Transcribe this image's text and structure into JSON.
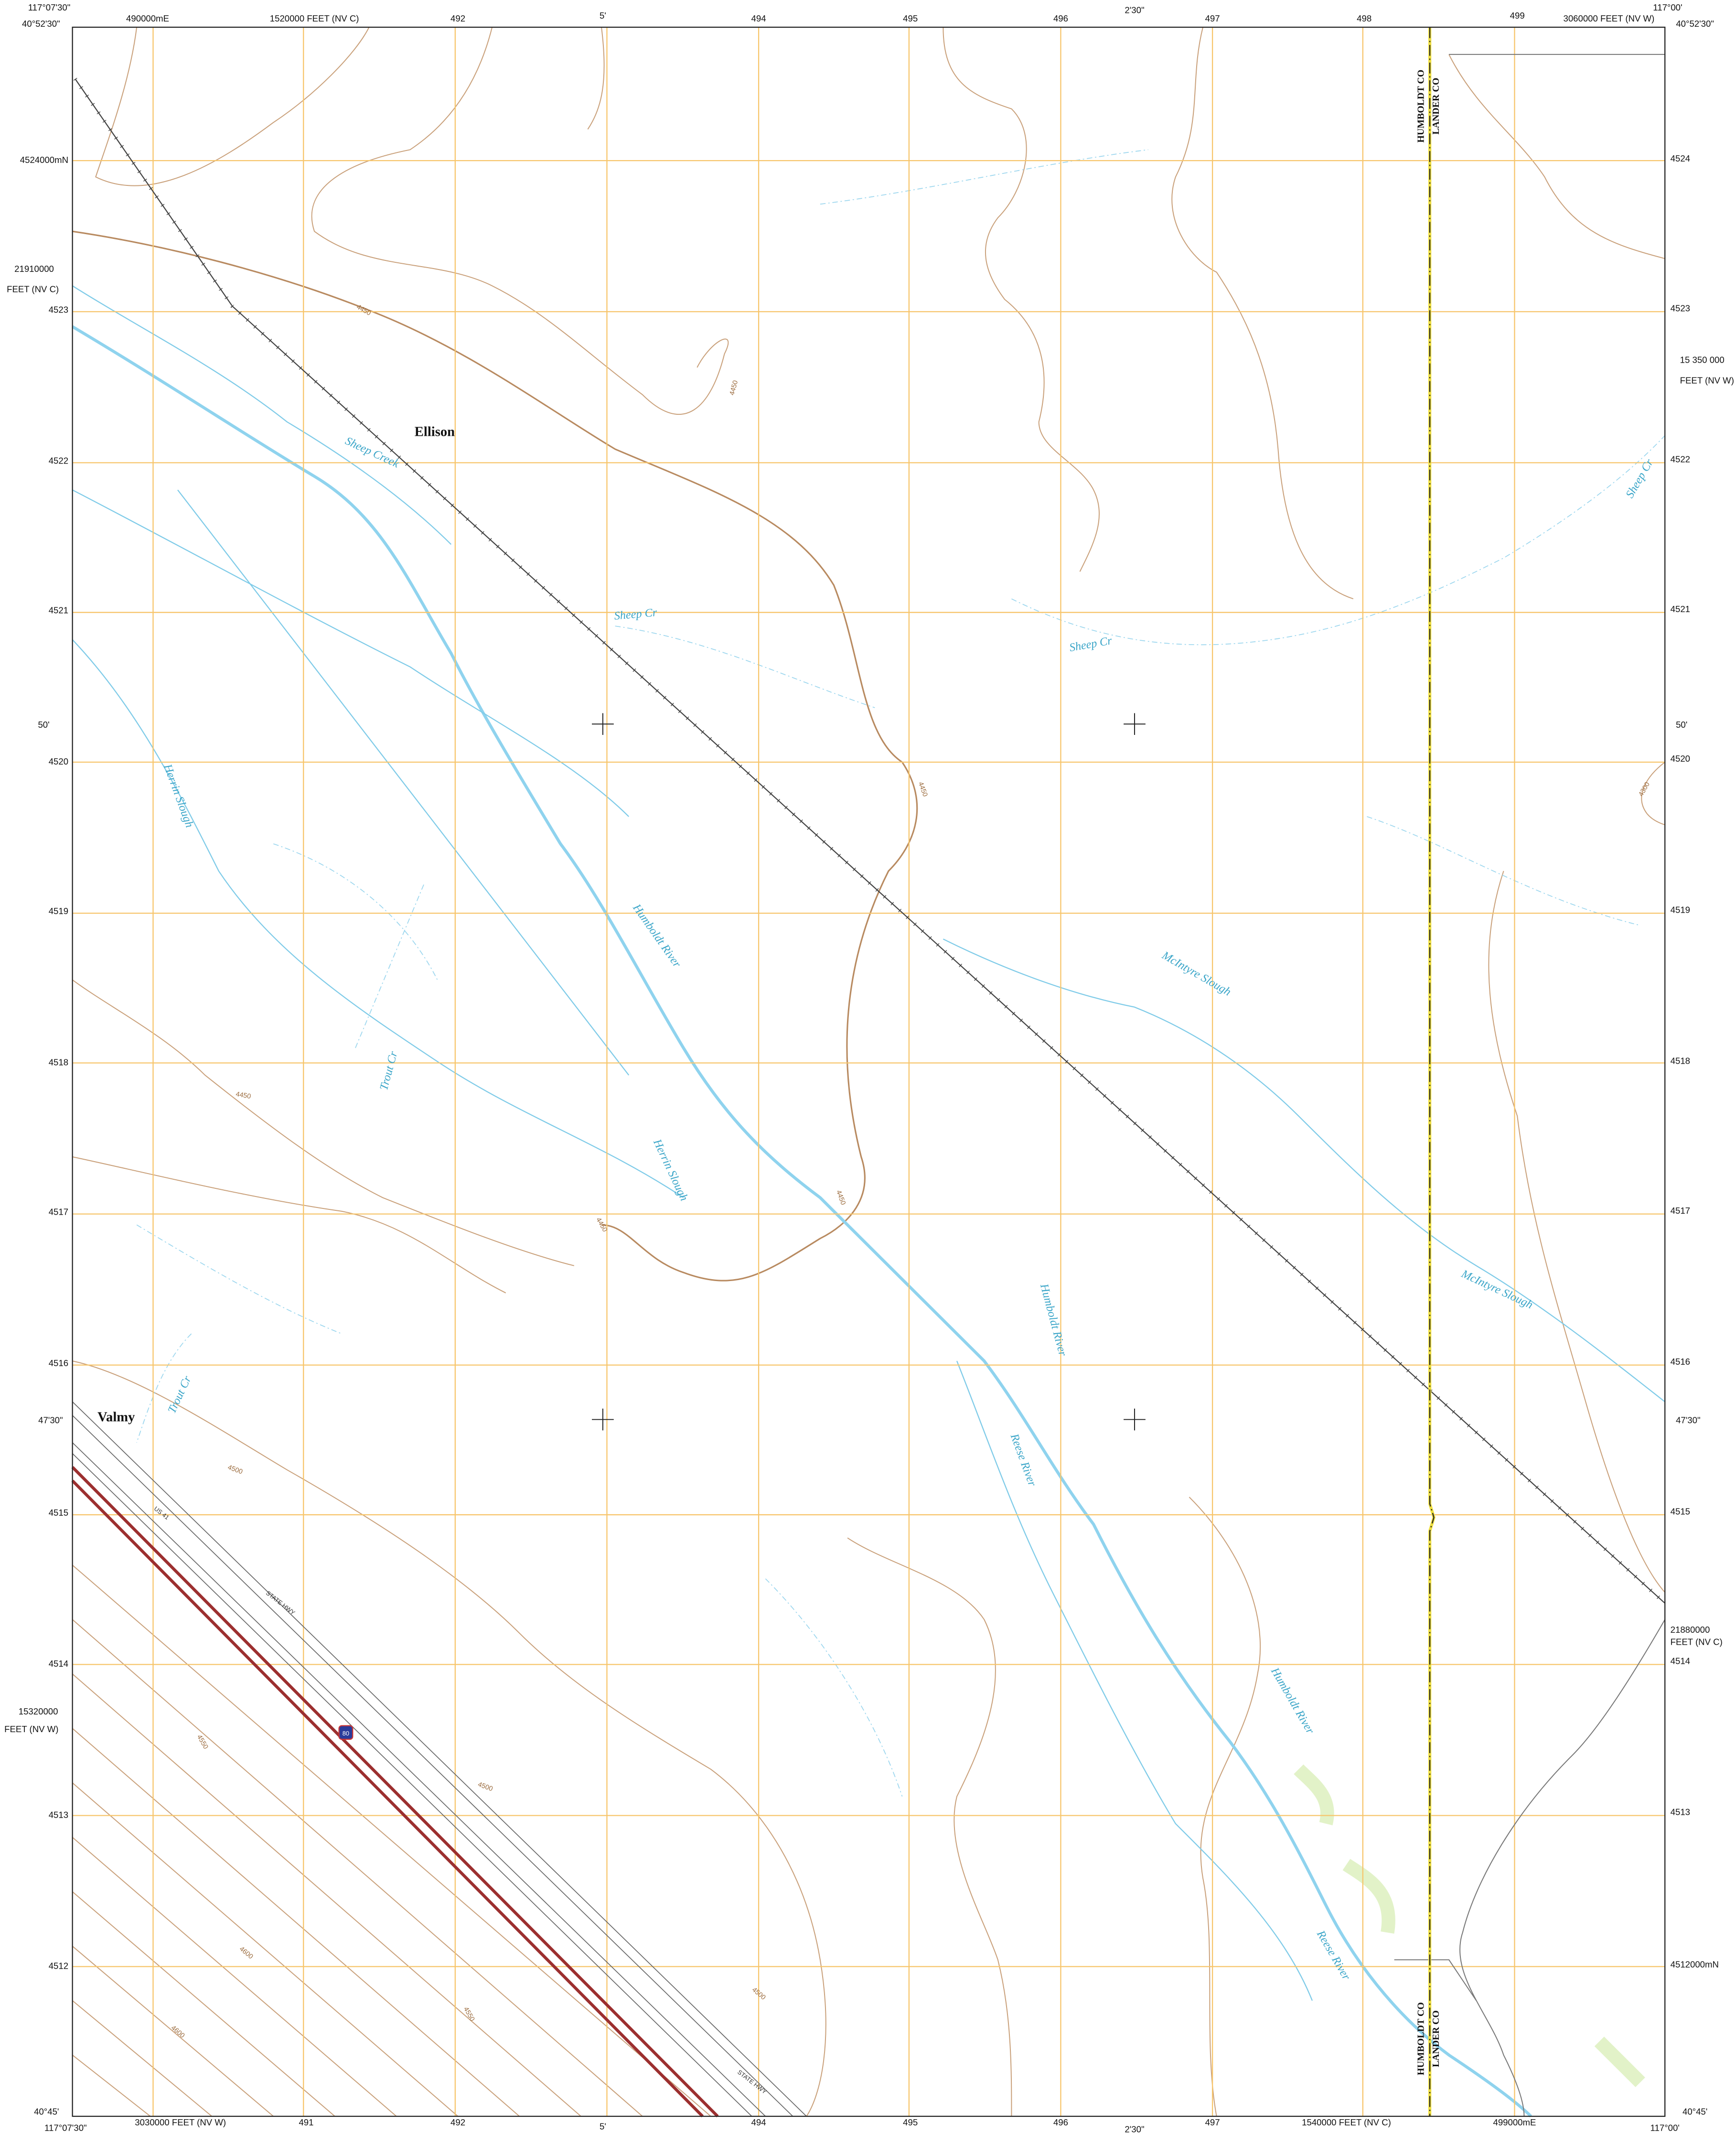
{
  "top_labels": [
    "117°07'30\"",
    "40°52'30\"",
    "490000mE",
    "1520000 FEET (NV C)",
    "492",
    "5'",
    "494",
    "495",
    "496",
    "2'30\"",
    "497",
    "498",
    "499",
    "3060000 FEET (NV W)",
    "117°00'",
    "40°52'30\""
  ],
  "bottom_labels": [
    "40°45'",
    "117°07'30\"",
    "3030000 FEET (NV W)",
    "491",
    "492",
    "5'",
    "494",
    "495",
    "496",
    "2'30\"",
    "497",
    "1540000 FEET (NV C)",
    "499000mE",
    "117°00'",
    "40°45'"
  ],
  "left_labels": [
    "4524000mN",
    "21910000",
    "FEET (NV C)",
    "4523",
    "4522",
    "4521",
    "50'",
    "4520",
    "4519",
    "4518",
    "4517",
    "4516",
    "47'30\"",
    "4515",
    "4514",
    "15320000",
    "FEET (NV W)",
    "4513",
    "4512"
  ],
  "right_labels": [
    "4524",
    "4523",
    "15 350 000",
    "FEET (NV W)",
    "4522",
    "4521",
    "50'",
    "4520",
    "4519",
    "4518",
    "4517",
    "4516",
    "47'30\"",
    "4515",
    "21880000",
    "FEET (NV C)",
    "4514",
    "4513",
    "4512000mN"
  ],
  "places": [
    "Ellison",
    "Valmy"
  ],
  "water_features": [
    "Sheep Creek",
    "Sheep Cr",
    "Sheep Cr",
    "Sheep Cr",
    "Herrin Slough",
    "Humboldt River",
    "McIntyre Slough",
    "Trout Cr",
    "Herrin Slough",
    "Humboldt River",
    "McIntyre Slough",
    "Trout Cr",
    "Reese River",
    "Humboldt River",
    "Reese River"
  ],
  "county_labels": [
    "HUMBOLDT CO",
    "LANDER CO",
    "HUMBOLDT CO",
    "LANDER CO"
  ],
  "contour_labels": [
    "4450",
    "4450",
    "4450",
    "4450",
    "4450",
    "4450",
    "4500",
    "4500",
    "4550",
    "4600",
    "4550",
    "4600",
    "4500",
    "4300"
  ],
  "road_labels": [
    "US 41",
    "STATE HWY",
    "STATE HWY",
    "80"
  ]
}
